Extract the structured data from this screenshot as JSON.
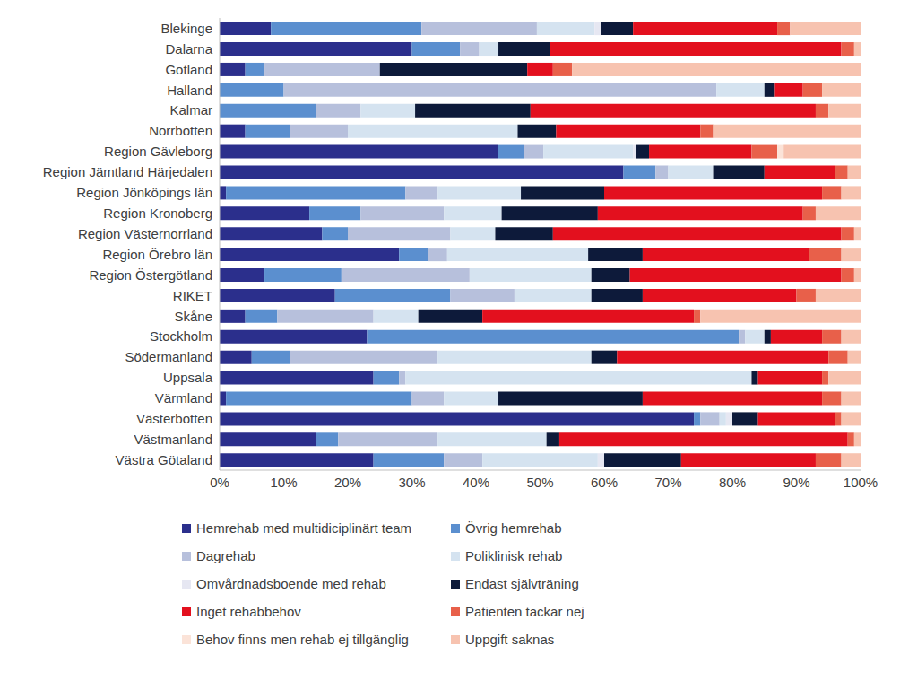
{
  "chart_data": {
    "type": "bar",
    "orientation": "horizontal",
    "stacked": true,
    "grid": false,
    "legend": "bottom",
    "categories": [
      "Blekinge",
      "Dalarna",
      "Gotland",
      "Halland",
      "Kalmar",
      "Norrbotten",
      "Region Gävleborg",
      "Region Jämtland Härjedalen",
      "Region Jönköpings län",
      "Region Kronoberg",
      "Region Västernorrland",
      "Region Örebro län",
      "Region Östergötland",
      "RIKET",
      "Skåne",
      "Stockholm",
      "Södermanland",
      "Uppsala",
      "Värmland",
      "Västerbotten",
      "Västmanland",
      "Västra Götaland"
    ],
    "xlim": [
      0,
      100
    ],
    "xticks": [
      {
        "value": 0,
        "label": "0%"
      },
      {
        "value": 10,
        "label": "10%"
      },
      {
        "value": 20,
        "label": "20%"
      },
      {
        "value": 30,
        "label": "30%"
      },
      {
        "value": 40,
        "label": "40%"
      },
      {
        "value": 50,
        "label": "50%"
      },
      {
        "value": 60,
        "label": "60%"
      },
      {
        "value": 70,
        "label": "70%"
      },
      {
        "value": 80,
        "label": "80%"
      },
      {
        "value": 90,
        "label": "90%"
      },
      {
        "value": 100,
        "label": "100%"
      }
    ],
    "series": [
      {
        "name": "Hemrehab med multidiciplinärt team",
        "color": "#2b2f8c",
        "values": [
          8,
          30,
          4,
          0,
          0,
          4,
          43.5,
          63,
          1,
          14,
          16,
          28,
          7,
          18,
          4,
          23,
          5,
          24,
          1,
          74,
          15,
          24
        ]
      },
      {
        "name": "Övrig hemrehab",
        "color": "#5b8fcf",
        "values": [
          23.5,
          7.5,
          3,
          10,
          15,
          7,
          4,
          5,
          28,
          8,
          4,
          4.5,
          12,
          18,
          5,
          58,
          6,
          4,
          29,
          1,
          3.5,
          11
        ]
      },
      {
        "name": "Dagrehab",
        "color": "#b7c0dc",
        "values": [
          18,
          3,
          18,
          67.5,
          7,
          9,
          3,
          2,
          5,
          13,
          16,
          3,
          20,
          10,
          15,
          1,
          23,
          1,
          5,
          3,
          15.5,
          6
        ]
      },
      {
        "name": "Poliklinisk rehab",
        "color": "#d5e3f0",
        "values": [
          9,
          3,
          0,
          7.5,
          8.5,
          26.5,
          14,
          7,
          13,
          9,
          7,
          22,
          19,
          12,
          7,
          3,
          24,
          54,
          8.5,
          1,
          17,
          18
        ]
      },
      {
        "name": "Omvårdnadsboende med rehab",
        "color": "#e6e7f2",
        "values": [
          1,
          0,
          0,
          0,
          0,
          0,
          0.5,
          0,
          0,
          0,
          0,
          0,
          0,
          0,
          0,
          0,
          0,
          0,
          0,
          1,
          0,
          1
        ]
      },
      {
        "name": "Endast självträning",
        "color": "#0d1a3a",
        "values": [
          5,
          8,
          23,
          1.5,
          18,
          6,
          2,
          8,
          13,
          15,
          9,
          8.5,
          6,
          8,
          10,
          1,
          4,
          1,
          22.5,
          4,
          2,
          12
        ]
      },
      {
        "name": "Inget rehabbehov",
        "color": "#e3101e",
        "values": [
          22.5,
          45.5,
          4,
          4.5,
          44.5,
          22.5,
          16,
          11,
          34,
          32,
          45,
          26,
          33,
          24,
          33,
          8,
          33,
          10,
          28,
          12,
          45,
          21
        ]
      },
      {
        "name": "Patienten tackar nej",
        "color": "#e8604a",
        "values": [
          2,
          2,
          3,
          3,
          2,
          2,
          4,
          2,
          3,
          2,
          2,
          5,
          2,
          3,
          1,
          3,
          3,
          1,
          3,
          1,
          1,
          4
        ]
      },
      {
        "name": "Behov finns men rehab ej tillgänglig",
        "color": "#fbe3d8",
        "values": [
          0,
          0,
          0,
          0,
          0,
          0,
          1,
          0,
          0,
          0,
          0,
          0,
          0,
          0,
          0,
          0,
          0,
          0,
          0,
          0,
          0,
          0
        ]
      },
      {
        "name": "Uppgift saknas",
        "color": "#f7c3b0",
        "values": [
          11,
          1,
          45,
          6,
          5,
          23,
          12,
          2,
          3,
          7,
          1,
          3,
          1,
          7,
          25,
          3,
          2,
          5,
          3,
          3,
          1,
          3
        ]
      }
    ]
  }
}
